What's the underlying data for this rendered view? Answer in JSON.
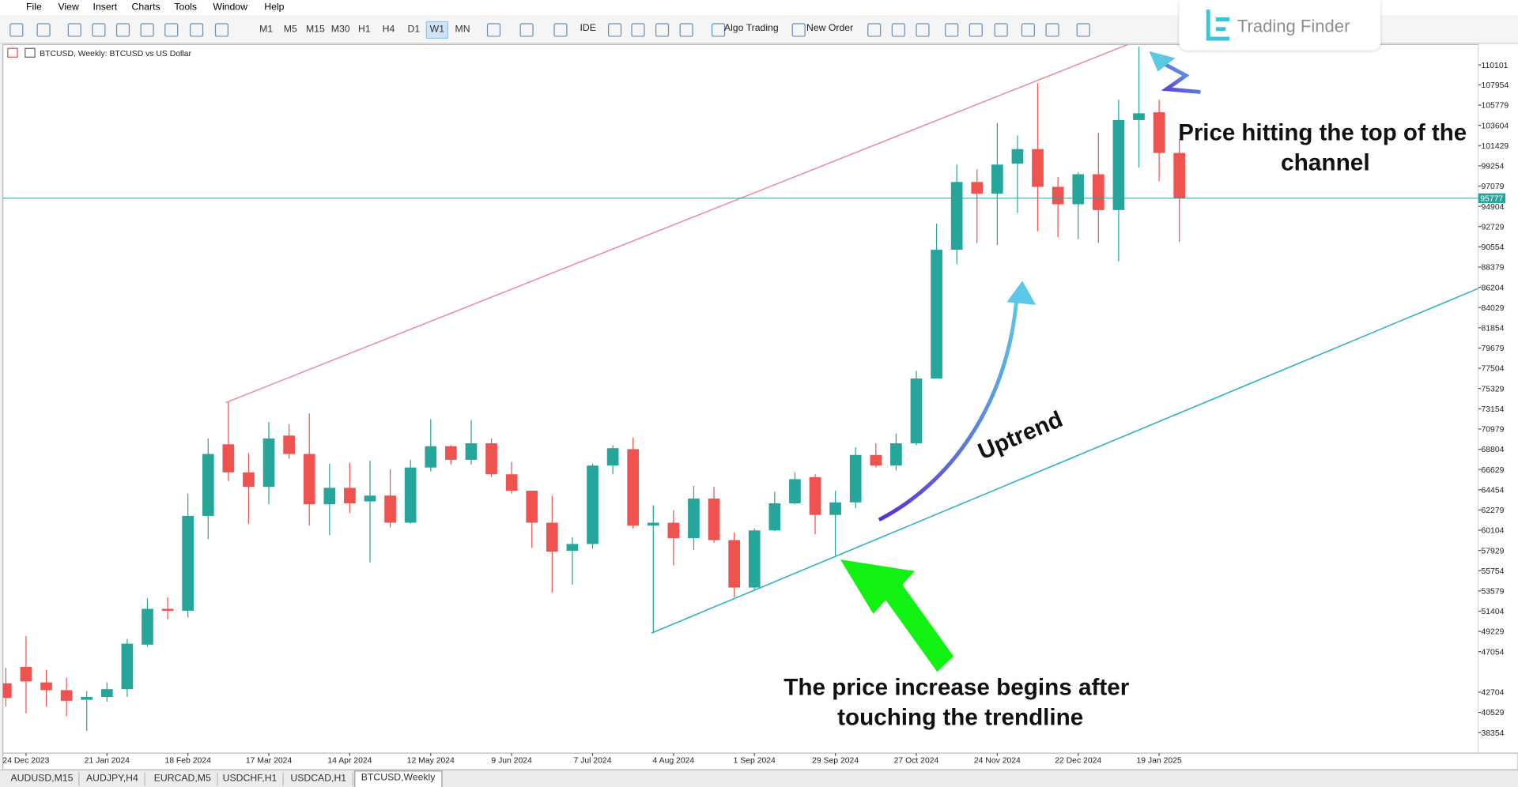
{
  "ui": {
    "menu": [
      "File",
      "View",
      "Insert",
      "Charts",
      "Tools",
      "Window",
      "Help"
    ],
    "timeframes": [
      "M1",
      "M5",
      "M15",
      "M30",
      "H1",
      "H4",
      "D1",
      "W1",
      "MN"
    ],
    "buttons": [
      "IDE",
      "Algo Trading",
      "New Order"
    ],
    "logo": "Trading Finder",
    "chart_header": "BTCUSD, Weekly: BTCUSD vs US Dollar",
    "tabs": [
      "AUDUSD,M15",
      "AUDJPY,H4",
      "EURCAD,M5",
      "USDCHF,H1",
      "USDCAD,H1",
      "BTCUSD,Weekly"
    ]
  },
  "chart_data": {
    "type": "candlestick",
    "categories": [
      null,
      "24 Dec 2023",
      null,
      null,
      null,
      "21 Jan 2024",
      null,
      null,
      null,
      "18 Feb 2024",
      null,
      null,
      null,
      "17 Mar 2024",
      null,
      null,
      null,
      "14 Apr 2024",
      null,
      null,
      null,
      "12 May 2024",
      null,
      null,
      null,
      "9 Jun 2024",
      null,
      null,
      null,
      "7 Jul 2024",
      null,
      null,
      null,
      "4 Aug 2024",
      null,
      null,
      null,
      "1 Sep 2024",
      null,
      null,
      null,
      "29 Sep 2024",
      null,
      null,
      null,
      "27 Oct 2024",
      null,
      null,
      null,
      "24 Nov 2024",
      null,
      null,
      null,
      "22 Dec 2024",
      null,
      null,
      null,
      "19 Jan 2025",
      null
    ],
    "open": [
      43646,
      45414,
      43750,
      42918,
      41878,
      42190,
      43022,
      47806,
      51654,
      51446,
      61638,
      69334,
      66318,
      64758,
      70270,
      68294,
      62886,
      64654,
      63198,
      63822,
      60910,
      66838,
      69126,
      67670,
      69438,
      66110,
      64342,
      60910,
      57894,
      58622,
      67046,
      68814,
      60598,
      60910,
      59246,
      63510,
      59038,
      53942,
      60078,
      62990,
      65798,
      61742,
      63094,
      68190,
      67046,
      69438,
      76406,
      90238,
      97518,
      96270,
      99494,
      101054,
      96998,
      95126,
      98350,
      94502,
      104174,
      105006,
      100638
    ],
    "high": [
      45310,
      48742,
      45102,
      44270,
      42814,
      43750,
      48430,
      52798,
      52902,
      64030,
      69958,
      73910,
      68398,
      71726,
      71518,
      72662,
      67254,
      67358,
      67566,
      66630,
      67670,
      72038,
      69230,
      71934,
      69958,
      67462,
      64342,
      63822,
      59350,
      67254,
      69230,
      70062,
      62782,
      62262,
      64862,
      64758,
      59870,
      60286,
      64238,
      66318,
      66110,
      64342,
      69022,
      69438,
      70478,
      77238,
      93046,
      99390,
      98870,
      103862,
      102510,
      108126,
      98038,
      98558,
      102822,
      106358,
      112078,
      106358,
      102094
    ],
    "low": [
      41150,
      40422,
      41150,
      40110,
      38550,
      41670,
      42190,
      47598,
      50510,
      50718,
      59142,
      65382,
      60806,
      62886,
      67774,
      60598,
      59558,
      61950,
      56646,
      60390,
      60806,
      66422,
      67150,
      67150,
      65798,
      64030,
      58206,
      53422,
      54254,
      58102,
      66110,
      60286,
      49054,
      56334,
      57998,
      58726,
      52902,
      53630,
      59974,
      62886,
      59662,
      57374,
      62470,
      66838,
      66526,
      69230,
      76406,
      88678,
      90966,
      90758,
      94190,
      92214,
      91590,
      91382,
      90966,
      88990,
      99078,
      97622,
      91070
    ],
    "close": [
      42086,
      43854,
      42918,
      41774,
      42190,
      43022,
      47910,
      51654,
      51446,
      61638,
      68294,
      66318,
      64758,
      69958,
      68294,
      62886,
      64654,
      62990,
      63822,
      60910,
      66838,
      69126,
      67670,
      69438,
      66110,
      64342,
      60910,
      57790,
      58622,
      67046,
      68918,
      60598,
      60910,
      59246,
      63510,
      59038,
      53942,
      60078,
      62990,
      65590,
      61742,
      63094,
      68190,
      67046,
      69438,
      76406,
      90238,
      97518,
      96270,
      99390,
      101054,
      96998,
      95126,
      98350,
      94502,
      104174,
      104902,
      100638,
      95750
    ],
    "up_color": "#26a69a",
    "down_color": "#ef5350",
    "ylim": [
      36150,
      112290
    ],
    "yticks": [
      110101,
      107954,
      105779,
      103604,
      101429,
      99254,
      97079,
      94904,
      92729,
      90554,
      88379,
      86204,
      84029,
      81854,
      79679,
      77504,
      75329,
      73154,
      70979,
      68804,
      66629,
      64454,
      62279,
      60104,
      57929,
      55754,
      53579,
      51404,
      49229,
      47054,
      42704,
      40529,
      38354
    ],
    "current_price": 95777,
    "current_price_color": "#26a69a",
    "annotations": [
      {
        "lines": [
          "Price hitting the top of the",
          "channel"
        ]
      },
      {
        "lines": [
          "The price increase begins after",
          "touching the trendline"
        ]
      },
      {
        "lines": [
          "Uptrend"
        ]
      }
    ]
  }
}
